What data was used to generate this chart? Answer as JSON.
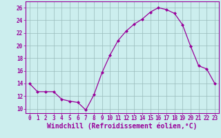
{
  "x": [
    0,
    1,
    2,
    3,
    4,
    5,
    6,
    7,
    8,
    9,
    10,
    11,
    12,
    13,
    14,
    15,
    16,
    17,
    18,
    19,
    20,
    21,
    22,
    23
  ],
  "y": [
    14.0,
    12.7,
    12.7,
    12.7,
    11.5,
    11.2,
    11.0,
    9.8,
    12.2,
    15.7,
    18.5,
    20.8,
    22.3,
    23.4,
    24.2,
    25.3,
    26.0,
    25.7,
    25.1,
    23.3,
    19.9,
    16.8,
    16.3,
    14.0
  ],
  "line_color": "#990099",
  "marker": "D",
  "marker_size": 2.0,
  "bg_color": "#cceeee",
  "grid_color": "#99bbbb",
  "xlabel": "Windchill (Refroidissement éolien,°C)",
  "xlabel_color": "#990099",
  "ylabel_ticks": [
    10,
    12,
    14,
    16,
    18,
    20,
    22,
    24,
    26
  ],
  "xlim": [
    -0.5,
    23.5
  ],
  "ylim": [
    9.3,
    27.0
  ],
  "xtick_labels": [
    "0",
    "1",
    "2",
    "3",
    "4",
    "5",
    "6",
    "7",
    "8",
    "9",
    "10",
    "11",
    "12",
    "13",
    "14",
    "15",
    "16",
    "17",
    "18",
    "19",
    "20",
    "21",
    "22",
    "23"
  ],
  "tick_color": "#990099",
  "tick_fontsize": 5.5,
  "xlabel_fontsize": 7.0,
  "spine_color": "#990099"
}
